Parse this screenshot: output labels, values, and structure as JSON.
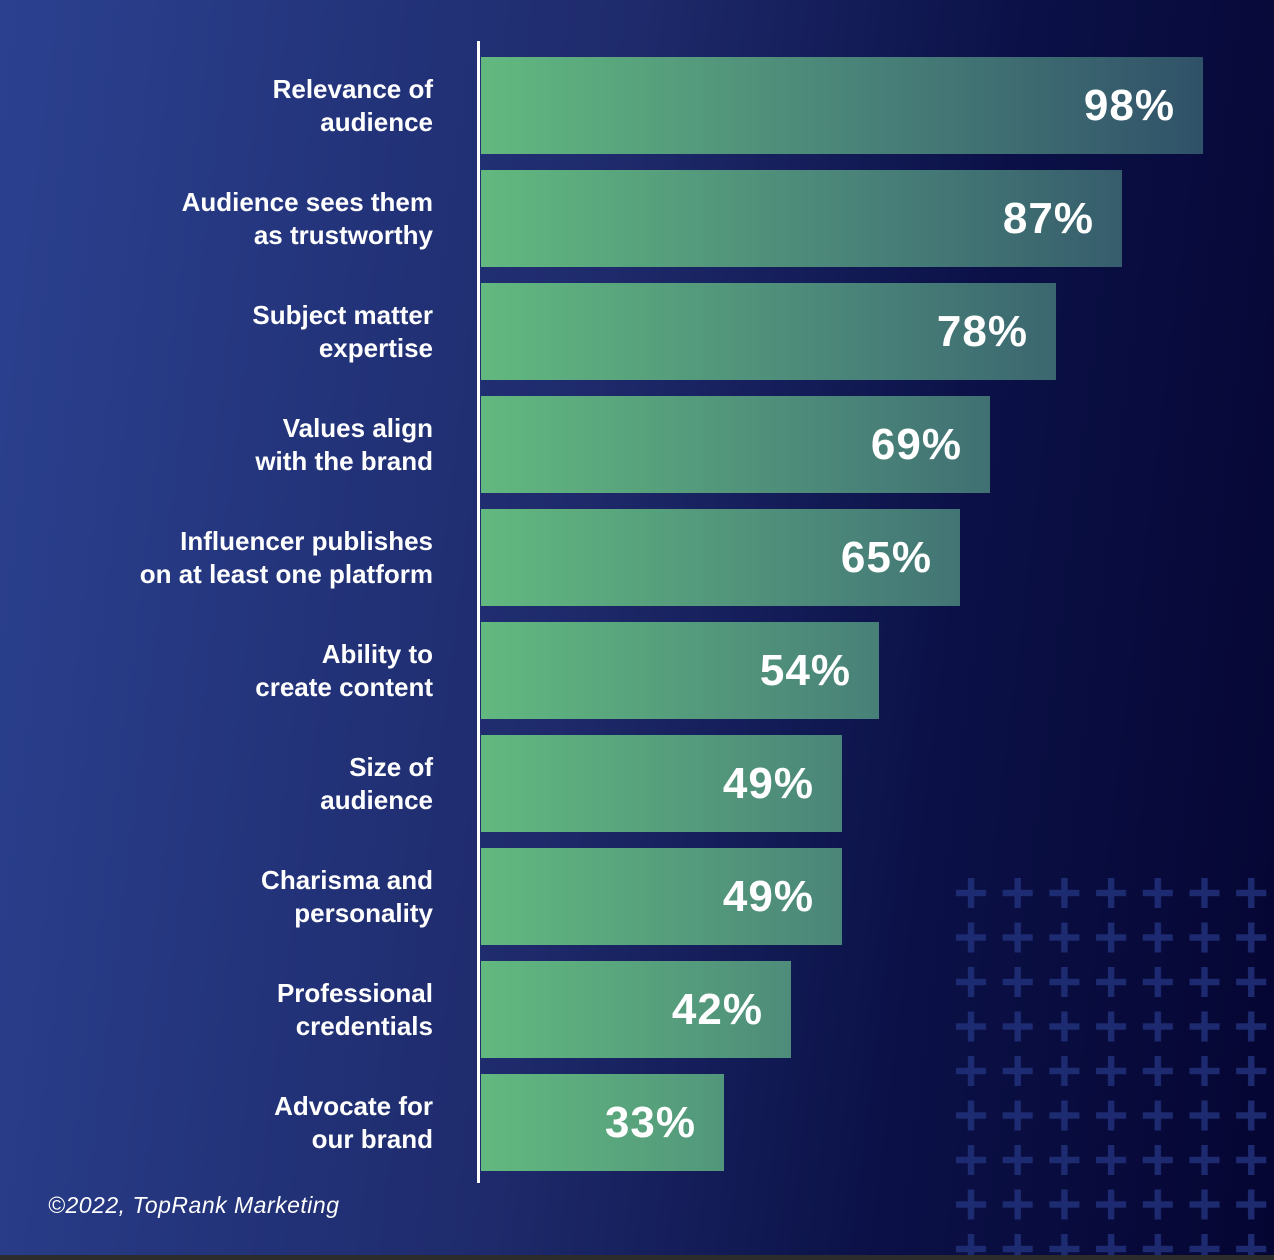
{
  "chart_data": {
    "type": "bar",
    "orientation": "horizontal",
    "categories": [
      "Relevance of\naudience",
      "Audience sees them\nas trustworthy",
      "Subject matter\nexpertise",
      "Values align\nwith the brand",
      "Influencer publishes\non at least one platform",
      "Ability to\ncreate content",
      "Size of\naudience",
      "Charisma and\npersonality",
      "Professional\ncredentials",
      "Advocate for\nour brand"
    ],
    "values": [
      98,
      87,
      78,
      69,
      65,
      54,
      49,
      49,
      42,
      33
    ],
    "value_labels": [
      "98%",
      "87%",
      "78%",
      "69%",
      "65%",
      "54%",
      "49%",
      "49%",
      "42%",
      "33%"
    ],
    "xlim": [
      0,
      100
    ],
    "grid": false,
    "legend": false,
    "bar_gradient_start": "#62b97f",
    "bar_gradient_end": "#2f4f68",
    "axis_color": "#ffffff",
    "label_color": "#ffffff",
    "value_label_color": "#ffffff"
  },
  "footer": {
    "credit": "©2022, TopRank Marketing"
  },
  "colors": {
    "background_left": "#2b4190",
    "background_right": "#050532",
    "plus_decoration": "#20307a",
    "bottom_strip": "#2c2c2c"
  }
}
